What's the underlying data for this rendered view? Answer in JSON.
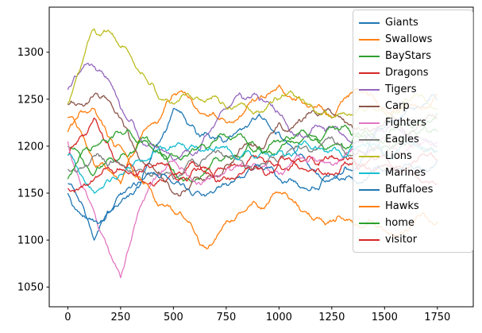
{
  "chart_data": {
    "type": "line",
    "title": "",
    "xlabel": "",
    "ylabel": "",
    "grid": false,
    "legend_position": "upper right",
    "xlim": [
      -88,
      1920
    ],
    "ylim": [
      1029,
      1348
    ],
    "x_ticks": [
      0,
      250,
      500,
      750,
      1000,
      1250,
      1500,
      1750
    ],
    "y_ticks": [
      1050,
      1100,
      1150,
      1200,
      1250,
      1300
    ],
    "x": [
      0,
      125,
      250,
      375,
      500,
      625,
      750,
      875,
      1000,
      1125,
      1250,
      1375,
      1500,
      1625,
      1750
    ],
    "series": [
      {
        "name": "Giants",
        "color": "#1f77b4",
        "values": [
          1160,
          1100,
          1140,
          1180,
          1240,
          1210,
          1205,
          1230,
          1215,
          1185,
          1165,
          1180,
          1220,
          1240,
          1250
        ]
      },
      {
        "name": "Swallows",
        "color": "#ff7f0e",
        "values": [
          1230,
          1180,
          1160,
          1220,
          1255,
          1235,
          1225,
          1250,
          1265,
          1245,
          1230,
          1260,
          1240,
          1245,
          1255
        ]
      },
      {
        "name": "BayStars",
        "color": "#2ca02c",
        "values": [
          1200,
          1170,
          1190,
          1210,
          1175,
          1165,
          1190,
          1205,
          1195,
          1210,
          1200,
          1215,
          1200,
          1215,
          1235
        ]
      },
      {
        "name": "Dragons",
        "color": "#d62728",
        "values": [
          1190,
          1230,
          1180,
          1160,
          1170,
          1180,
          1175,
          1190,
          1180,
          1185,
          1190,
          1175,
          1180,
          1170,
          1160
        ]
      },
      {
        "name": "Tigers",
        "color": "#9467bd",
        "values": [
          1260,
          1285,
          1240,
          1200,
          1185,
          1195,
          1240,
          1255,
          1235,
          1210,
          1220,
          1205,
          1215,
          1205,
          1200
        ]
      },
      {
        "name": "Carp",
        "color": "#8c564b",
        "values": [
          1245,
          1255,
          1230,
          1180,
          1150,
          1165,
          1180,
          1200,
          1225,
          1230,
          1235,
          1220,
          1225,
          1215,
          1230
        ]
      },
      {
        "name": "Fighters",
        "color": "#e377c2",
        "values": [
          1205,
          1130,
          1060,
          1150,
          1185,
          1160,
          1175,
          1180,
          1170,
          1185,
          1180,
          1195,
          1210,
          1200,
          1205
        ]
      },
      {
        "name": "Eagles",
        "color": "#7f7f7f",
        "values": [
          1175,
          1190,
          1180,
          1170,
          1165,
          1180,
          1190,
          1175,
          1185,
          1200,
          1210,
          1195,
          1190,
          1200,
          1195
        ]
      },
      {
        "name": "Lions",
        "color": "#bcbd22",
        "values": [
          1245,
          1325,
          1305,
          1270,
          1245,
          1250,
          1240,
          1235,
          1250,
          1245,
          1230,
          1240,
          1235,
          1250,
          1240
        ]
      },
      {
        "name": "Marines",
        "color": "#17becf",
        "values": [
          1190,
          1150,
          1170,
          1185,
          1200,
          1195,
          1200,
          1190,
          1195,
          1205,
          1195,
          1200,
          1190,
          1205,
          1195
        ]
      },
      {
        "name": "Buffaloes",
        "color": "#1f77b4",
        "values": [
          1150,
          1120,
          1150,
          1170,
          1160,
          1150,
          1160,
          1175,
          1165,
          1155,
          1170,
          1160,
          1175,
          1180,
          1185
        ]
      },
      {
        "name": "Hawks",
        "color": "#ff7f0e",
        "values": [
          1215,
          1240,
          1200,
          1160,
          1130,
          1095,
          1120,
          1140,
          1150,
          1130,
          1120,
          1115,
          1110,
          1115,
          1120
        ]
      },
      {
        "name": "home",
        "color": "#2ca02c",
        "values": [
          1165,
          1200,
          1215,
          1205,
          1190,
          1200,
          1210,
          1195,
          1205,
          1215,
          1220,
          1210,
          1205,
          1220,
          1215
        ]
      },
      {
        "name": "visitor",
        "color": "#d62728",
        "values": [
          1155,
          1165,
          1175,
          1180,
          1170,
          1175,
          1165,
          1175,
          1185,
          1175,
          1170,
          1180,
          1190,
          1180,
          1185
        ]
      }
    ]
  }
}
